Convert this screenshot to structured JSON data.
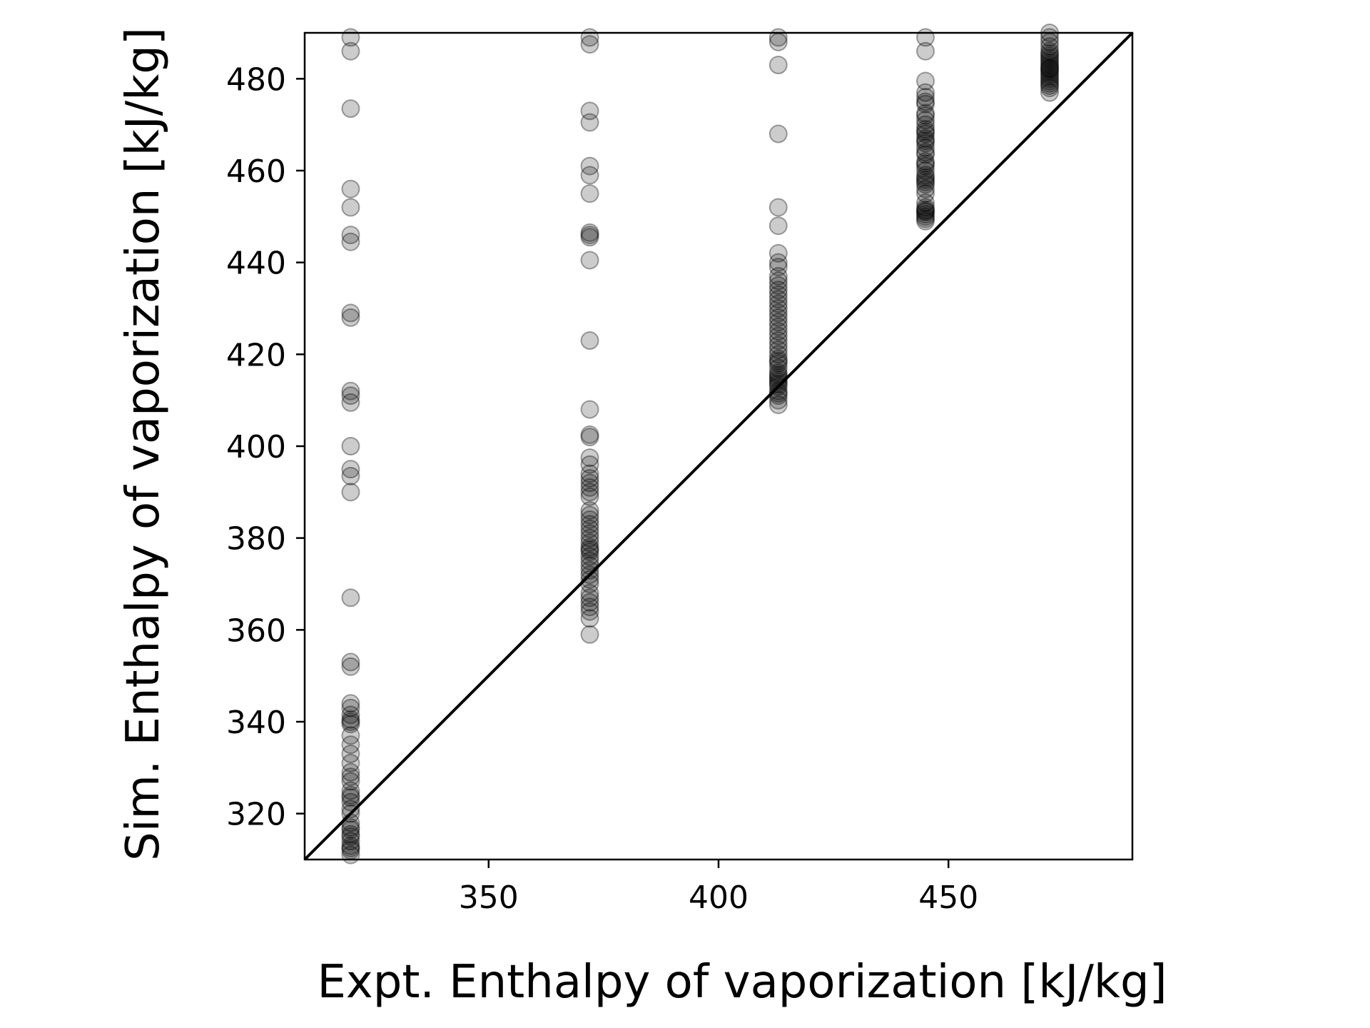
{
  "chart_data": {
    "type": "scatter",
    "title": "",
    "xlabel": "Expt. Enthalpy of vaporization [kJ/kg]",
    "ylabel": "Sim. Enthalpy of vaporization [kJ/kg]",
    "xlim": [
      310,
      490
    ],
    "ylim": [
      310,
      490
    ],
    "xticks": [
      350,
      400,
      450
    ],
    "yticks": [
      320,
      340,
      360,
      380,
      400,
      420,
      440,
      460,
      480
    ],
    "grid": false,
    "marker_color": "#000000",
    "marker_alpha": 0.2,
    "reference_line": {
      "type": "y=x",
      "color": "#000000"
    },
    "series": [
      {
        "x": [
          320,
          320,
          320,
          320,
          320,
          320,
          320,
          320,
          320,
          320,
          320,
          320,
          320,
          320,
          320,
          320,
          320,
          320,
          320,
          320,
          320,
          320,
          320,
          320,
          320,
          320,
          320,
          320,
          320,
          320,
          320,
          320,
          320,
          320,
          320,
          320,
          320,
          320,
          320,
          320,
          320,
          320,
          320,
          320,
          320,
          320,
          320,
          320,
          372,
          372,
          372,
          372,
          372,
          372,
          372,
          372,
          372,
          372,
          372,
          372,
          372,
          372,
          372,
          372,
          372,
          372,
          372,
          372,
          372,
          372,
          372,
          372,
          372,
          372,
          372,
          372,
          372,
          372,
          372,
          372,
          372,
          372,
          372,
          372,
          372,
          372,
          372,
          372,
          372,
          372,
          372,
          372,
          372,
          372,
          372,
          372,
          413,
          413,
          413,
          413,
          413,
          413,
          413,
          413,
          413,
          413,
          413,
          413,
          413,
          413,
          413,
          413,
          413,
          413,
          413,
          413,
          413,
          413,
          413,
          413,
          413,
          413,
          413,
          413,
          413,
          413,
          413,
          413,
          413,
          413,
          413,
          413,
          413,
          413,
          413,
          413,
          413,
          413,
          413,
          445,
          445,
          445,
          445,
          445,
          445,
          445,
          445,
          445,
          445,
          445,
          445,
          445,
          445,
          445,
          445,
          445,
          445,
          445,
          445,
          445,
          445,
          445,
          445,
          445,
          445,
          445,
          445,
          445,
          445,
          445,
          445,
          445,
          445,
          445,
          445,
          445,
          445,
          445,
          445,
          472,
          472,
          472,
          472,
          472,
          472,
          472,
          472,
          472,
          472,
          472,
          472,
          472,
          472,
          472,
          472,
          472,
          472,
          472,
          472,
          472,
          472,
          472
        ],
        "y": [
          489,
          486,
          473.5,
          456,
          452,
          446,
          444.5,
          429,
          428,
          412,
          411,
          409.5,
          400,
          395,
          393.5,
          390,
          367,
          353,
          352,
          344,
          343,
          341.5,
          340.5,
          340,
          339.5,
          337,
          335,
          333,
          331,
          329,
          328,
          327,
          325,
          324,
          323.5,
          322.5,
          321,
          320,
          318,
          317,
          316.5,
          315.5,
          315,
          314,
          313,
          312.5,
          312,
          311,
          489,
          487.5,
          473,
          470.5,
          461,
          459,
          455,
          446.5,
          446,
          445.5,
          440.5,
          423,
          408,
          402.5,
          402,
          397.5,
          396,
          394,
          393,
          392,
          391,
          390,
          389,
          386,
          384,
          383,
          382,
          380,
          379,
          378,
          377.5,
          377,
          376,
          375,
          374,
          373,
          372,
          371,
          370,
          368,
          367,
          366,
          365,
          364,
          362.5,
          359,
          381,
          385,
          489,
          488,
          483,
          468,
          452,
          448,
          442,
          440,
          439,
          437,
          436,
          434,
          433,
          432,
          431,
          430,
          429,
          428,
          426,
          425,
          424,
          423,
          421,
          420,
          419,
          418,
          417,
          416,
          415.5,
          415,
          414.5,
          414,
          413.5,
          413,
          412,
          411,
          410,
          409,
          427,
          435,
          422,
          418.5,
          411.5,
          489,
          486,
          479.5,
          477,
          476,
          474.5,
          472,
          471,
          470,
          469,
          468,
          467,
          466,
          465,
          464,
          463.5,
          462,
          461,
          460,
          459,
          458,
          457,
          456,
          455,
          453,
          452,
          451.5,
          451,
          450.5,
          450,
          449.5,
          449,
          461.5,
          466.5,
          475,
          472.5,
          468.5,
          458.5,
          457.5,
          451.2,
          490,
          489,
          488,
          487,
          486,
          485,
          484,
          483.5,
          483,
          482.5,
          482,
          481.5,
          481,
          480.5,
          480,
          479.5,
          479,
          478.5,
          478,
          477,
          485.5,
          484.5,
          482.2
        ]
      }
    ]
  }
}
